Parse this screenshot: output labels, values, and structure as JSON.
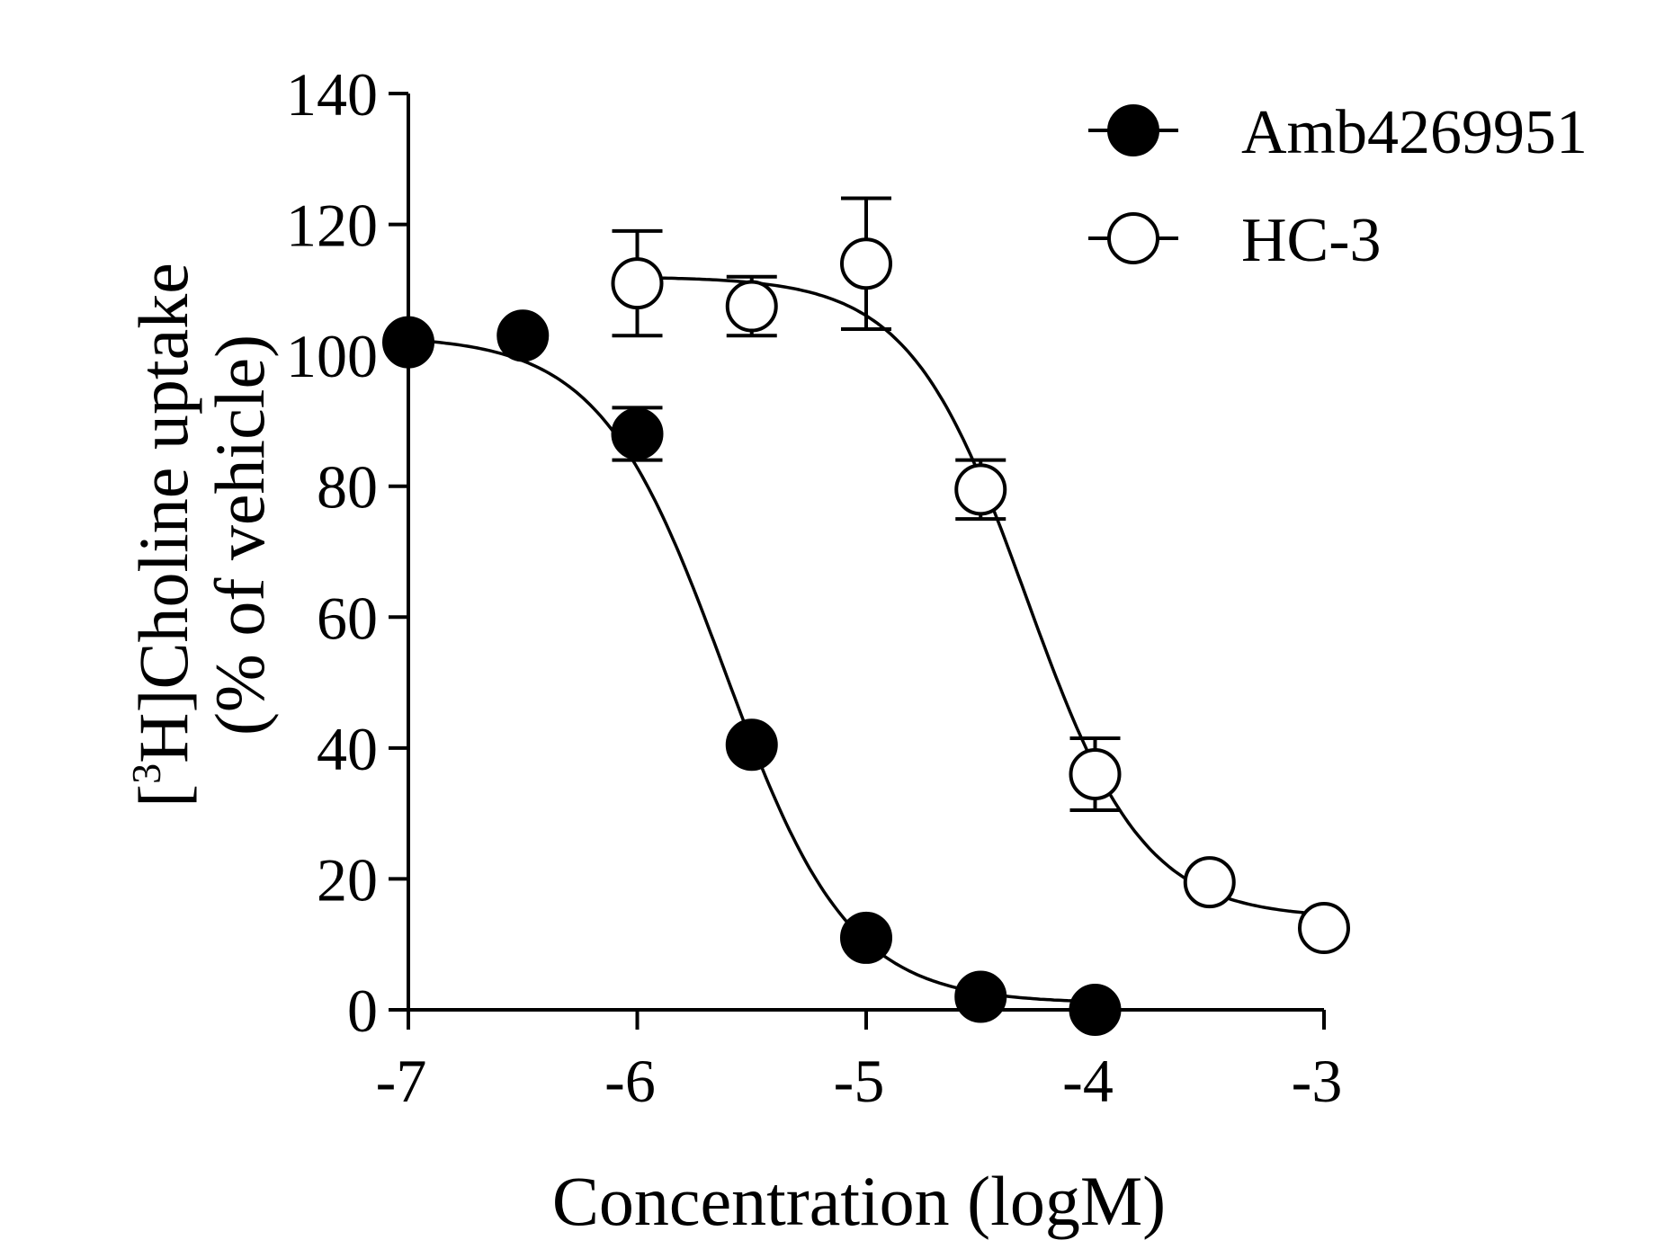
{
  "chart_data": {
    "type": "scatter",
    "xlabel": "Concentration (logM)",
    "ylabel": {
      "line1_prefix": "[",
      "line1_superscript": "3",
      "line1_rest": "H]Choline uptake",
      "line2": "(% of vehicle)"
    },
    "xlim": [
      -7,
      -3
    ],
    "ylim": [
      0,
      140
    ],
    "x_ticks": [
      -7,
      -6,
      -5,
      -4,
      -3
    ],
    "x_tick_labels": [
      "-7",
      "-6",
      "-5",
      "-4",
      "-3"
    ],
    "y_ticks": [
      0,
      20,
      40,
      60,
      80,
      100,
      120,
      140
    ],
    "y_tick_labels": [
      "0",
      "20",
      "40",
      "60",
      "80",
      "100",
      "120",
      "140"
    ],
    "grid": false,
    "legend_position": "top-right",
    "series": [
      {
        "name": "Amb4269951",
        "marker": "filled-circle",
        "color": "#000000",
        "points": [
          {
            "x": -7.0,
            "y": 102,
            "err": 0
          },
          {
            "x": -6.5,
            "y": 103,
            "err": 0
          },
          {
            "x": -6.0,
            "y": 88,
            "err": 4
          },
          {
            "x": -5.5,
            "y": 40.5,
            "err": 0
          },
          {
            "x": -5.0,
            "y": 11,
            "err": 0
          },
          {
            "x": -4.5,
            "y": 2,
            "err": 0
          },
          {
            "x": -4.0,
            "y": 0,
            "err": 0
          }
        ],
        "fit": {
          "top": 103,
          "bottom": 1,
          "log_ic50": -5.62,
          "hill_slope": -1.6
        }
      },
      {
        "name": "HC-3",
        "marker": "open-circle",
        "color": "#000000",
        "points": [
          {
            "x": -6.0,
            "y": 111,
            "err": 8
          },
          {
            "x": -5.5,
            "y": 107.5,
            "err": 4.5
          },
          {
            "x": -5.0,
            "y": 114,
            "err": 10
          },
          {
            "x": -4.5,
            "y": 79.5,
            "err": 4.5
          },
          {
            "x": -4.0,
            "y": 36,
            "err": 5.5
          },
          {
            "x": -3.5,
            "y": 19.5,
            "err": 0
          },
          {
            "x": -3.0,
            "y": 12.5,
            "err": 0
          }
        ],
        "fit": {
          "top": 112,
          "bottom": 14,
          "log_ic50": -4.3,
          "hill_slope": -1.7
        }
      }
    ]
  }
}
